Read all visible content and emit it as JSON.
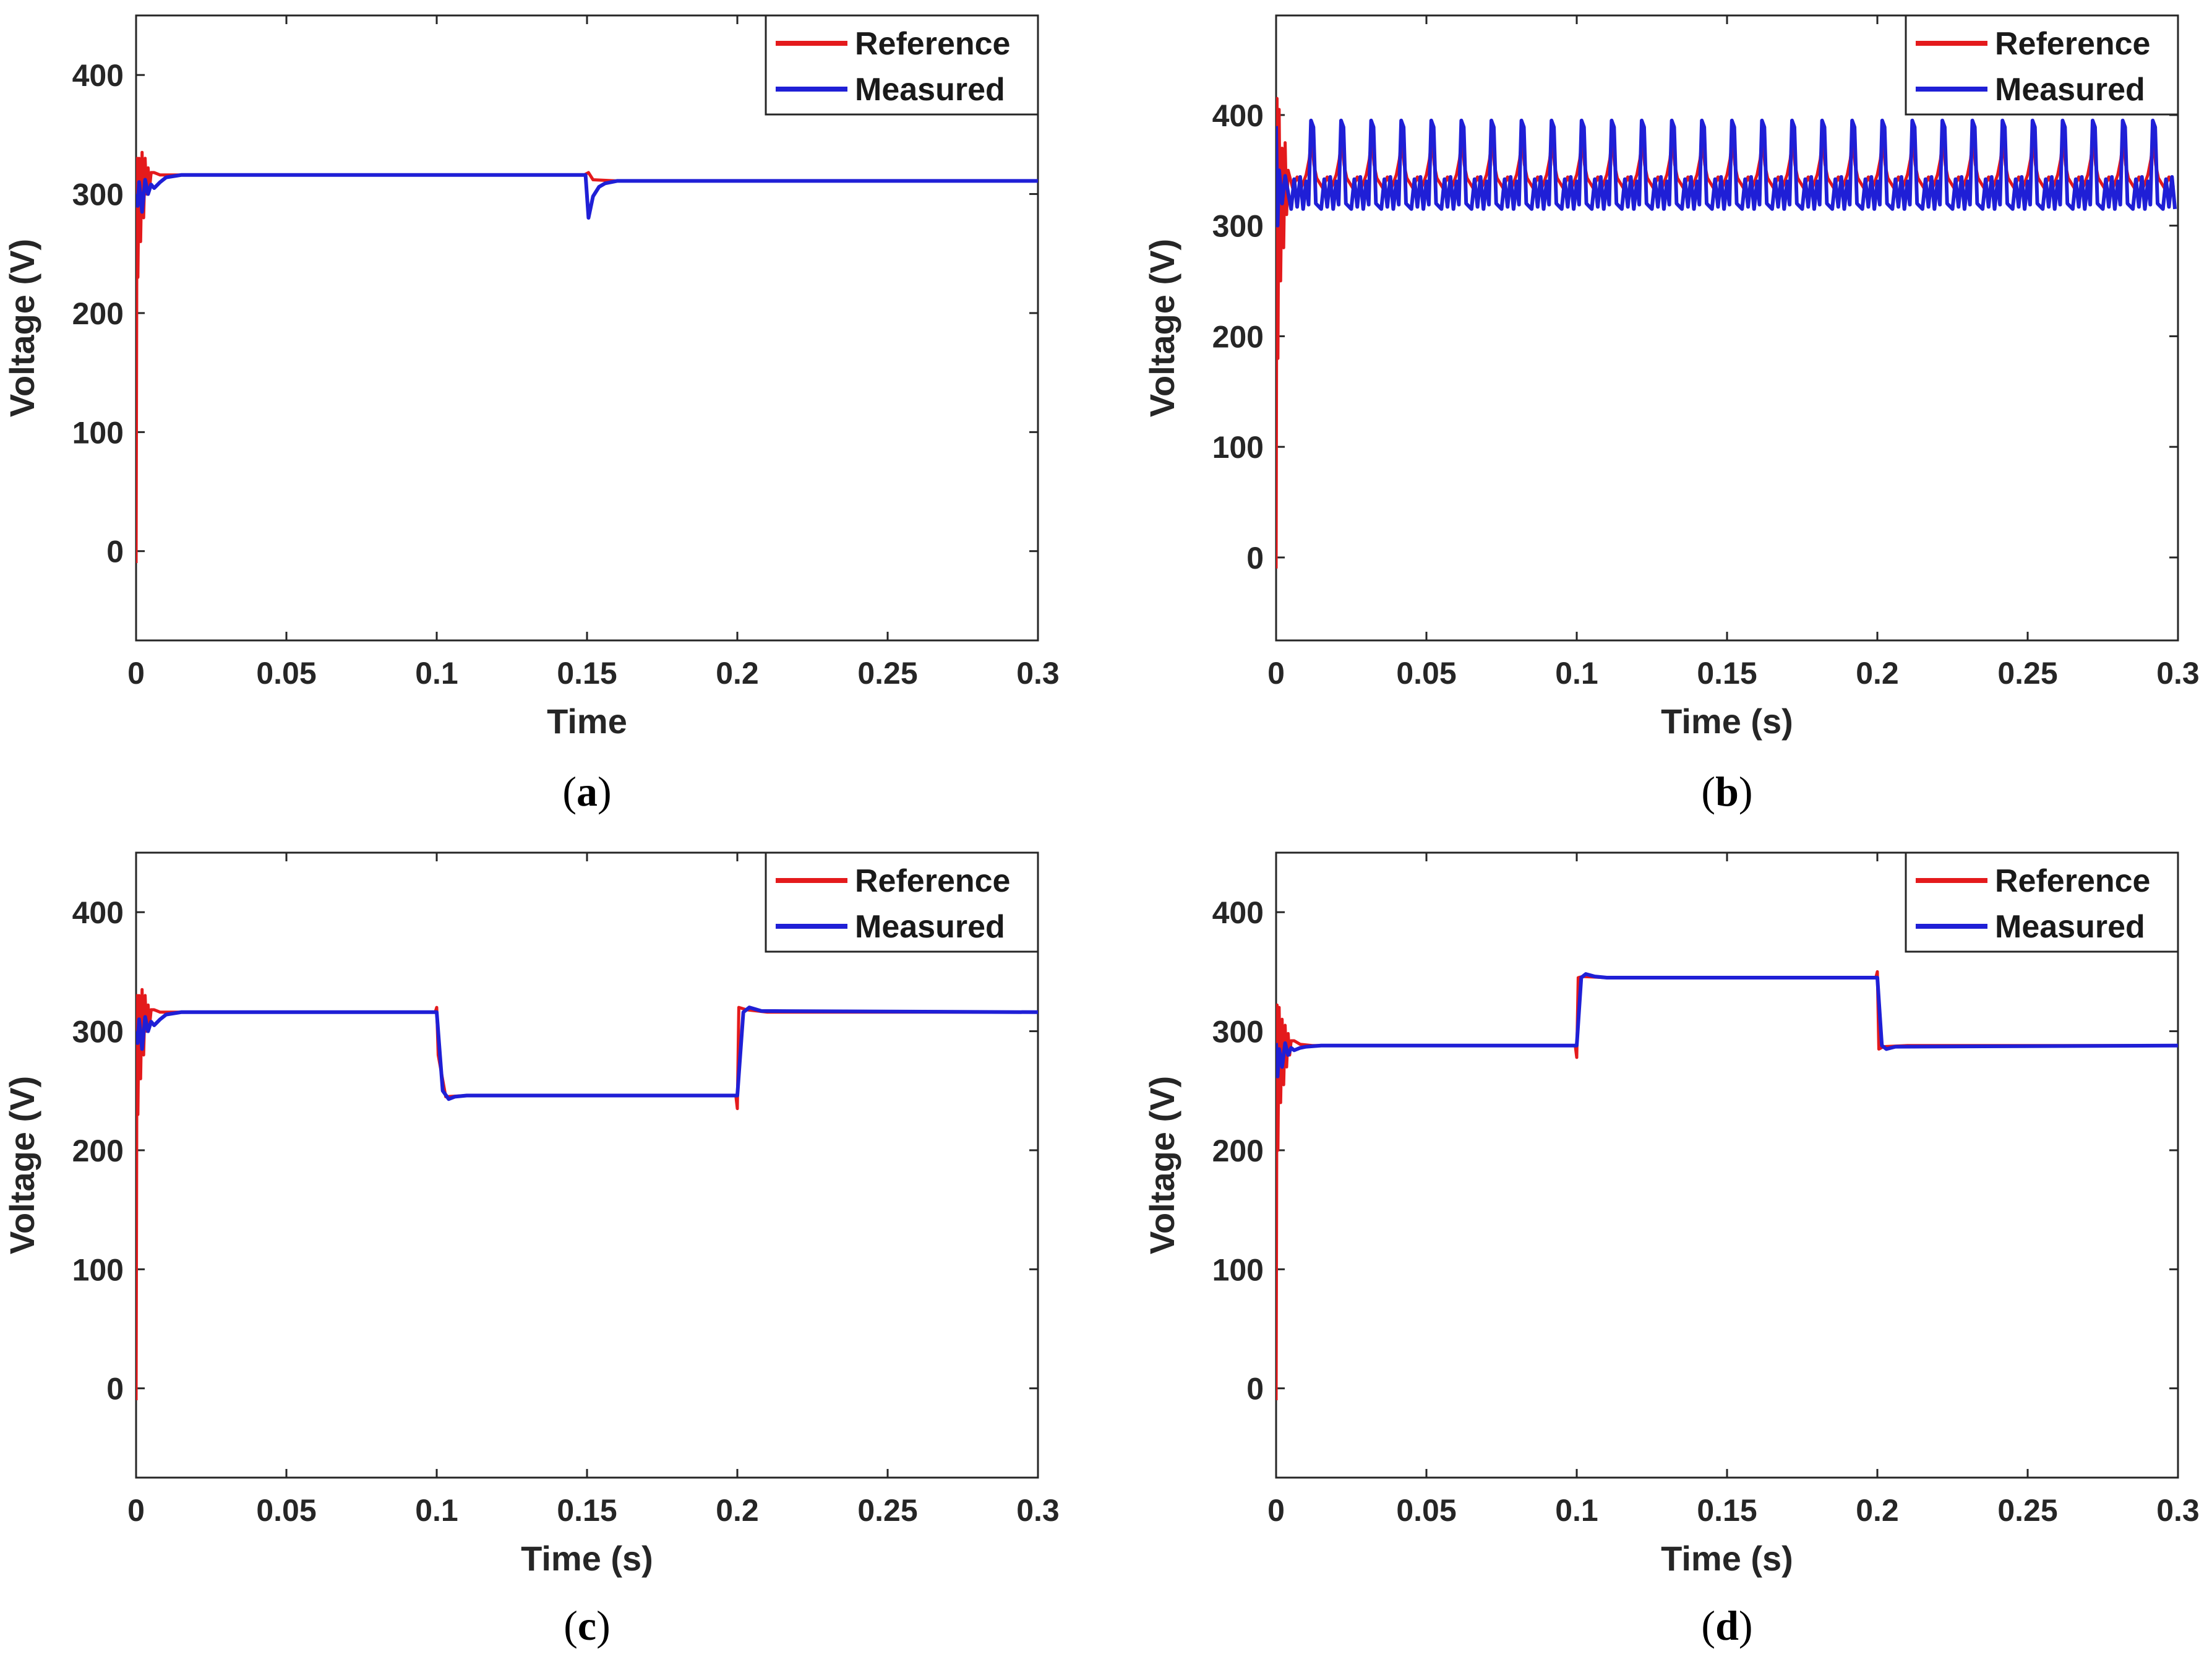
{
  "figure": {
    "colors": {
      "reference": "#e41a1c",
      "measured": "#1f1fd6",
      "axis": "#262626"
    }
  },
  "chart_data": [
    {
      "type": "line",
      "id": "a",
      "caption": {
        "open": "(",
        "letter": "a",
        "close": ")"
      },
      "xlabel": "Time",
      "ylabel": "Voltage (V)",
      "xlim": [
        0,
        0.3
      ],
      "ylim": [
        -75,
        450
      ],
      "xticks": [
        0,
        0.05,
        0.1,
        0.15,
        0.2,
        0.25,
        0.3
      ],
      "xtick_labels": [
        "0",
        "0.05",
        "0.1",
        "0.15",
        "0.2",
        "0.25",
        "0.3"
      ],
      "yticks": [
        0,
        100,
        200,
        300,
        400
      ],
      "ytick_labels": [
        "0",
        "100",
        "200",
        "300",
        "400"
      ],
      "legend": {
        "location": "top-right",
        "entries": [
          "Reference",
          "Measured"
        ]
      },
      "series": [
        {
          "name": "Reference",
          "color": "#e41a1c",
          "x": [
            0,
            0.0003,
            0.0006,
            0.001,
            0.0015,
            0.002,
            0.0025,
            0.003,
            0.0035,
            0.004,
            0.0045,
            0.005,
            0.006,
            0.008,
            0.012,
            0.02,
            0.149,
            0.1505,
            0.152,
            0.16,
            0.3
          ],
          "y": [
            -10,
            330,
            230,
            330,
            260,
            335,
            280,
            330,
            300,
            322,
            305,
            318,
            318,
            316,
            316,
            316,
            316,
            318,
            312,
            311,
            311
          ]
        },
        {
          "name": "Measured",
          "color": "#1f1fd6",
          "x": [
            0,
            0.0005,
            0.001,
            0.002,
            0.003,
            0.004,
            0.005,
            0.006,
            0.008,
            0.01,
            0.015,
            0.02,
            0.1495,
            0.1505,
            0.152,
            0.154,
            0.156,
            0.16,
            0.3
          ],
          "y": [
            300,
            290,
            310,
            285,
            312,
            300,
            308,
            305,
            310,
            314,
            316,
            316,
            316,
            280,
            298,
            306,
            309,
            311,
            311
          ]
        }
      ]
    },
    {
      "type": "line",
      "id": "b",
      "caption": {
        "open": "(",
        "letter": "b",
        "close": ")"
      },
      "xlabel": "Time (s)",
      "ylabel": "Voltage (V)",
      "xlim": [
        0,
        0.3
      ],
      "ylim": [
        -75,
        490
      ],
      "xticks": [
        0,
        0.05,
        0.1,
        0.15,
        0.2,
        0.25,
        0.3
      ],
      "xtick_labels": [
        "0",
        "0.05",
        "0.1",
        "0.15",
        "0.2",
        "0.25",
        "0.3"
      ],
      "yticks": [
        0,
        100,
        200,
        300,
        400
      ],
      "ytick_labels": [
        "0",
        "100",
        "200",
        "300",
        "400"
      ],
      "legend": {
        "location": "top-right",
        "entries": [
          "Reference",
          "Measured"
        ]
      },
      "ripple": {
        "start": 0.004,
        "period": 0.01,
        "peak": 395,
        "base": 330,
        "min": 315,
        "ref_peak": 380,
        "ref_base": 338
      },
      "series": [
        {
          "name": "Reference",
          "color": "#e41a1c",
          "x": [
            0,
            0.0003,
            0.0006,
            0.001,
            0.0015,
            0.002,
            0.0025,
            0.003,
            0.0035,
            0.004
          ],
          "y": [
            -10,
            415,
            180,
            405,
            250,
            370,
            280,
            375,
            310,
            350
          ]
        },
        {
          "name": "Measured",
          "color": "#1f1fd6",
          "x": [
            0,
            0.0005,
            0.001,
            0.002,
            0.003,
            0.004
          ],
          "y": [
            390,
            300,
            350,
            320,
            345,
            330
          ]
        }
      ]
    },
    {
      "type": "line",
      "id": "c",
      "caption": {
        "open": "(",
        "letter": "c",
        "close": ")"
      },
      "xlabel": "Time (s)",
      "ylabel": "Voltage (V)",
      "xlim": [
        0,
        0.3
      ],
      "ylim": [
        -75,
        450
      ],
      "xticks": [
        0,
        0.05,
        0.1,
        0.15,
        0.2,
        0.25,
        0.3
      ],
      "xtick_labels": [
        "0",
        "0.05",
        "0.1",
        "0.15",
        "0.2",
        "0.25",
        "0.3"
      ],
      "yticks": [
        0,
        100,
        200,
        300,
        400
      ],
      "ytick_labels": [
        "0",
        "100",
        "200",
        "300",
        "400"
      ],
      "legend": {
        "location": "top-right",
        "entries": [
          "Reference",
          "Measured"
        ]
      },
      "series": [
        {
          "name": "Reference",
          "color": "#e41a1c",
          "x": [
            0,
            0.0003,
            0.0006,
            0.001,
            0.0015,
            0.002,
            0.0025,
            0.003,
            0.0035,
            0.004,
            0.0045,
            0.005,
            0.006,
            0.008,
            0.012,
            0.02,
            0.0995,
            0.1,
            0.1005,
            0.103,
            0.11,
            0.1995,
            0.2,
            0.2005,
            0.203,
            0.21,
            0.3
          ],
          "y": [
            -10,
            330,
            230,
            330,
            260,
            335,
            280,
            330,
            300,
            322,
            305,
            318,
            318,
            316,
            316,
            316,
            316,
            320,
            280,
            245,
            246,
            246,
            235,
            320,
            318,
            316,
            316
          ]
        },
        {
          "name": "Measured",
          "color": "#1f1fd6",
          "x": [
            0,
            0.0005,
            0.001,
            0.002,
            0.003,
            0.004,
            0.005,
            0.006,
            0.008,
            0.01,
            0.015,
            0.02,
            0.1,
            0.102,
            0.104,
            0.106,
            0.11,
            0.2,
            0.202,
            0.204,
            0.208,
            0.3
          ],
          "y": [
            300,
            290,
            310,
            285,
            312,
            300,
            308,
            305,
            310,
            314,
            316,
            316,
            316,
            250,
            243,
            245,
            246,
            246,
            316,
            320,
            317,
            316
          ]
        }
      ]
    },
    {
      "type": "line",
      "id": "d",
      "caption": {
        "open": "(",
        "letter": "d",
        "close": ")"
      },
      "xlabel": "Time (s)",
      "ylabel": "Voltage (V)",
      "xlim": [
        0,
        0.3
      ],
      "ylim": [
        -75,
        450
      ],
      "xticks": [
        0,
        0.05,
        0.1,
        0.15,
        0.2,
        0.25,
        0.3
      ],
      "xtick_labels": [
        "0",
        "0.05",
        "0.1",
        "0.15",
        "0.2",
        "0.25",
        "0.3"
      ],
      "yticks": [
        0,
        100,
        200,
        300,
        400
      ],
      "ytick_labels": [
        "0",
        "100",
        "200",
        "300",
        "400"
      ],
      "legend": {
        "location": "top-right",
        "entries": [
          "Reference",
          "Measured"
        ]
      },
      "series": [
        {
          "name": "Reference",
          "color": "#e41a1c",
          "x": [
            0,
            0.0003,
            0.0006,
            0.001,
            0.0015,
            0.002,
            0.0025,
            0.003,
            0.0035,
            0.004,
            0.0045,
            0.005,
            0.006,
            0.008,
            0.012,
            0.02,
            0.0995,
            0.1,
            0.1005,
            0.102,
            0.11,
            0.1995,
            0.2,
            0.2005,
            0.202,
            0.21,
            0.3
          ],
          "y": [
            -10,
            322,
            200,
            320,
            240,
            310,
            255,
            305,
            270,
            298,
            280,
            292,
            292,
            289,
            288,
            288,
            288,
            278,
            345,
            346,
            345,
            345,
            350,
            285,
            287,
            288,
            288
          ]
        },
        {
          "name": "Measured",
          "color": "#1f1fd6",
          "x": [
            0,
            0.0005,
            0.001,
            0.002,
            0.003,
            0.004,
            0.005,
            0.006,
            0.008,
            0.01,
            0.015,
            0.02,
            0.1,
            0.1015,
            0.103,
            0.106,
            0.11,
            0.2,
            0.2015,
            0.203,
            0.206,
            0.3
          ],
          "y": [
            290,
            262,
            285,
            270,
            290,
            280,
            286,
            284,
            286,
            287,
            288,
            288,
            288,
            345,
            348,
            346,
            345,
            345,
            288,
            285,
            287,
            288
          ]
        }
      ]
    }
  ]
}
